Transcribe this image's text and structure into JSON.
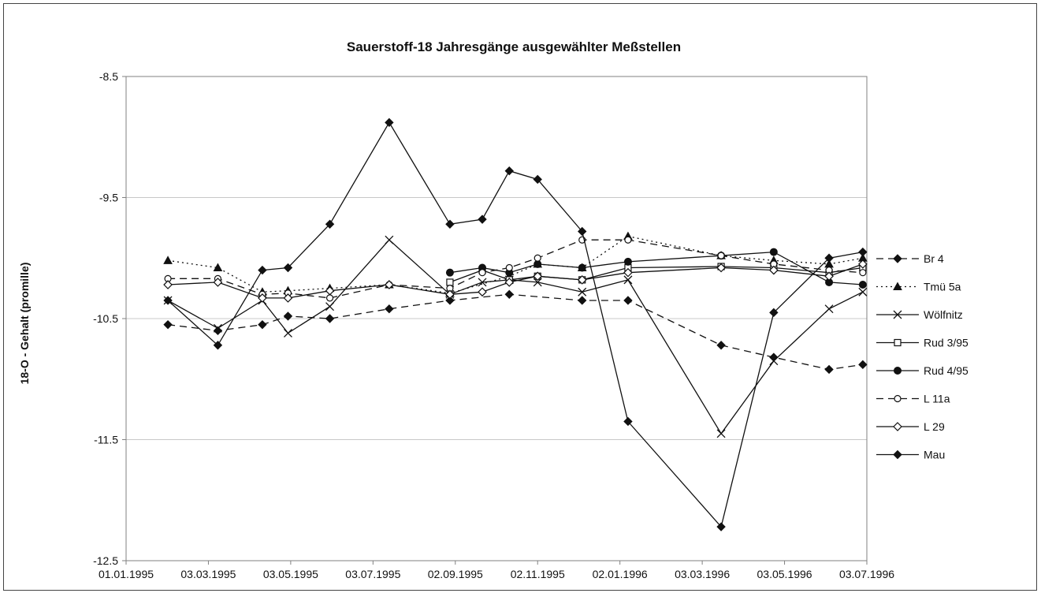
{
  "chart_data": {
    "type": "line",
    "title": "Sauerstoff-18 Jahresgänge ausgewählter Meßstellen",
    "xlabel": "",
    "ylabel": "18-O - Gehalt (promille)",
    "x_ticks": [
      "01.01.1995",
      "03.03.1995",
      "03.05.1995",
      "03.07.1995",
      "02.09.1995",
      "02.11.1995",
      "02.01.1996",
      "03.03.1996",
      "03.05.1996",
      "03.07.1996"
    ],
    "xlim": [
      "1995-01-01",
      "1996-07-03"
    ],
    "y_ticks": [
      "-8.5",
      "-9.5",
      "-10.5",
      "-11.5",
      "-12.5"
    ],
    "ylim": [
      -12.5,
      -8.5
    ],
    "grid": "horizontal",
    "legend_position": "right",
    "series": [
      {
        "name": "Br 4",
        "line": "dashed",
        "marker": "diamond-filled",
        "data": [
          [
            "1995-02-01",
            -10.55
          ],
          [
            "1995-03-10",
            -10.6
          ],
          [
            "1995-04-12",
            -10.55
          ],
          [
            "1995-05-01",
            -10.48
          ],
          [
            "1995-06-01",
            -10.5
          ],
          [
            "1995-07-15",
            -10.42
          ],
          [
            "1995-08-29",
            -10.35
          ],
          [
            "1995-10-12",
            -10.3
          ],
          [
            "1995-12-05",
            -10.35
          ],
          [
            "1996-01-08",
            -10.35
          ],
          [
            "1996-03-17",
            -10.72
          ],
          [
            "1996-04-25",
            -10.82
          ],
          [
            "1996-06-05",
            -10.92
          ],
          [
            "1996-06-30",
            -10.88
          ]
        ]
      },
      {
        "name": "Tmü 5a",
        "line": "dotted",
        "marker": "triangle-filled",
        "data": [
          [
            "1995-02-01",
            -10.02
          ],
          [
            "1995-03-10",
            -10.08
          ],
          [
            "1995-04-12",
            -10.28
          ],
          [
            "1995-05-01",
            -10.27
          ],
          [
            "1995-06-01",
            -10.25
          ],
          [
            "1995-07-15",
            -10.22
          ],
          [
            "1995-08-29",
            -10.29
          ],
          [
            "1995-10-12",
            -10.15
          ],
          [
            "1995-11-02",
            -10.05
          ],
          [
            "1995-12-05",
            -10.08
          ],
          [
            "1996-01-08",
            -9.82
          ],
          [
            "1996-03-17",
            -9.98
          ],
          [
            "1996-04-25",
            -10.02
          ],
          [
            "1996-06-05",
            -10.05
          ],
          [
            "1996-06-30",
            -10.0
          ]
        ]
      },
      {
        "name": "Wölfnitz",
        "line": "solid",
        "marker": "x",
        "data": [
          [
            "1995-02-01",
            -10.35
          ],
          [
            "1995-03-10",
            -10.58
          ],
          [
            "1995-04-12",
            -10.35
          ],
          [
            "1995-05-01",
            -10.62
          ],
          [
            "1995-06-01",
            -10.4
          ],
          [
            "1995-07-15",
            -9.85
          ],
          [
            "1995-08-29",
            -10.3
          ],
          [
            "1995-09-22",
            -10.2
          ],
          [
            "1995-10-12",
            -10.18
          ],
          [
            "1995-11-02",
            -10.2
          ],
          [
            "1995-12-05",
            -10.28
          ],
          [
            "1996-01-08",
            -10.18
          ],
          [
            "1996-03-17",
            -11.45
          ],
          [
            "1996-04-25",
            -10.85
          ],
          [
            "1996-06-05",
            -10.42
          ],
          [
            "1996-06-30",
            -10.28
          ]
        ]
      },
      {
        "name": "Rud 3/95",
        "line": "solid",
        "marker": "square-open",
        "data": [
          [
            "1995-08-29",
            -10.2
          ],
          [
            "1995-09-22",
            -10.1
          ],
          [
            "1995-10-12",
            -10.18
          ],
          [
            "1995-11-02",
            -10.15
          ],
          [
            "1995-12-05",
            -10.18
          ],
          [
            "1996-01-08",
            -10.08
          ],
          [
            "1996-03-17",
            -10.07
          ],
          [
            "1996-04-25",
            -10.08
          ],
          [
            "1996-06-05",
            -10.12
          ],
          [
            "1996-06-30",
            -10.08
          ]
        ]
      },
      {
        "name": "Rud 4/95",
        "line": "solid",
        "marker": "circle-filled",
        "data": [
          [
            "1995-08-29",
            -10.12
          ],
          [
            "1995-09-22",
            -10.08
          ],
          [
            "1995-10-12",
            -10.12
          ],
          [
            "1995-11-02",
            -10.05
          ],
          [
            "1995-12-05",
            -10.08
          ],
          [
            "1996-01-08",
            -10.03
          ],
          [
            "1996-03-17",
            -9.98
          ],
          [
            "1996-04-25",
            -9.95
          ],
          [
            "1996-06-05",
            -10.2
          ],
          [
            "1996-06-30",
            -10.22
          ]
        ]
      },
      {
        "name": "L 11a",
        "line": "dashed",
        "marker": "circle-open",
        "data": [
          [
            "1995-02-01",
            -10.17
          ],
          [
            "1995-03-10",
            -10.17
          ],
          [
            "1995-04-12",
            -10.3
          ],
          [
            "1995-05-01",
            -10.29
          ],
          [
            "1995-06-01",
            -10.33
          ],
          [
            "1995-07-15",
            -10.22
          ],
          [
            "1995-08-29",
            -10.25
          ],
          [
            "1995-09-22",
            -10.12
          ],
          [
            "1995-10-12",
            -10.08
          ],
          [
            "1995-11-02",
            -10.0
          ],
          [
            "1995-12-05",
            -9.85
          ],
          [
            "1996-01-08",
            -9.85
          ],
          [
            "1996-03-17",
            -9.98
          ],
          [
            "1996-04-25",
            -10.05
          ],
          [
            "1996-06-05",
            -10.1
          ],
          [
            "1996-06-30",
            -10.12
          ]
        ]
      },
      {
        "name": "L 29",
        "line": "solid",
        "marker": "diamond-open",
        "data": [
          [
            "1995-02-01",
            -10.22
          ],
          [
            "1995-03-10",
            -10.2
          ],
          [
            "1995-04-12",
            -10.33
          ],
          [
            "1995-05-01",
            -10.33
          ],
          [
            "1995-06-01",
            -10.27
          ],
          [
            "1995-07-15",
            -10.22
          ],
          [
            "1995-08-29",
            -10.3
          ],
          [
            "1995-09-22",
            -10.28
          ],
          [
            "1995-10-12",
            -10.2
          ],
          [
            "1995-11-02",
            -10.15
          ],
          [
            "1995-12-05",
            -10.18
          ],
          [
            "1996-01-08",
            -10.12
          ],
          [
            "1996-03-17",
            -10.08
          ],
          [
            "1996-04-25",
            -10.1
          ],
          [
            "1996-06-05",
            -10.15
          ],
          [
            "1996-06-30",
            -10.05
          ]
        ]
      },
      {
        "name": "Mau",
        "line": "solid",
        "marker": "diamond-filled",
        "data": [
          [
            "1995-02-01",
            -10.35
          ],
          [
            "1995-03-10",
            -10.72
          ],
          [
            "1995-04-12",
            -10.1
          ],
          [
            "1995-05-01",
            -10.08
          ],
          [
            "1995-06-01",
            -9.72
          ],
          [
            "1995-07-15",
            -8.88
          ],
          [
            "1995-08-29",
            -9.72
          ],
          [
            "1995-09-22",
            -9.68
          ],
          [
            "1995-10-12",
            -9.28
          ],
          [
            "1995-11-02",
            -9.35
          ],
          [
            "1995-12-05",
            -9.78
          ],
          [
            "1996-01-08",
            -11.35
          ],
          [
            "1996-03-17",
            -12.22
          ],
          [
            "1996-04-25",
            -10.45
          ],
          [
            "1996-06-05",
            -10.0
          ],
          [
            "1996-06-30",
            -9.95
          ]
        ]
      }
    ]
  }
}
